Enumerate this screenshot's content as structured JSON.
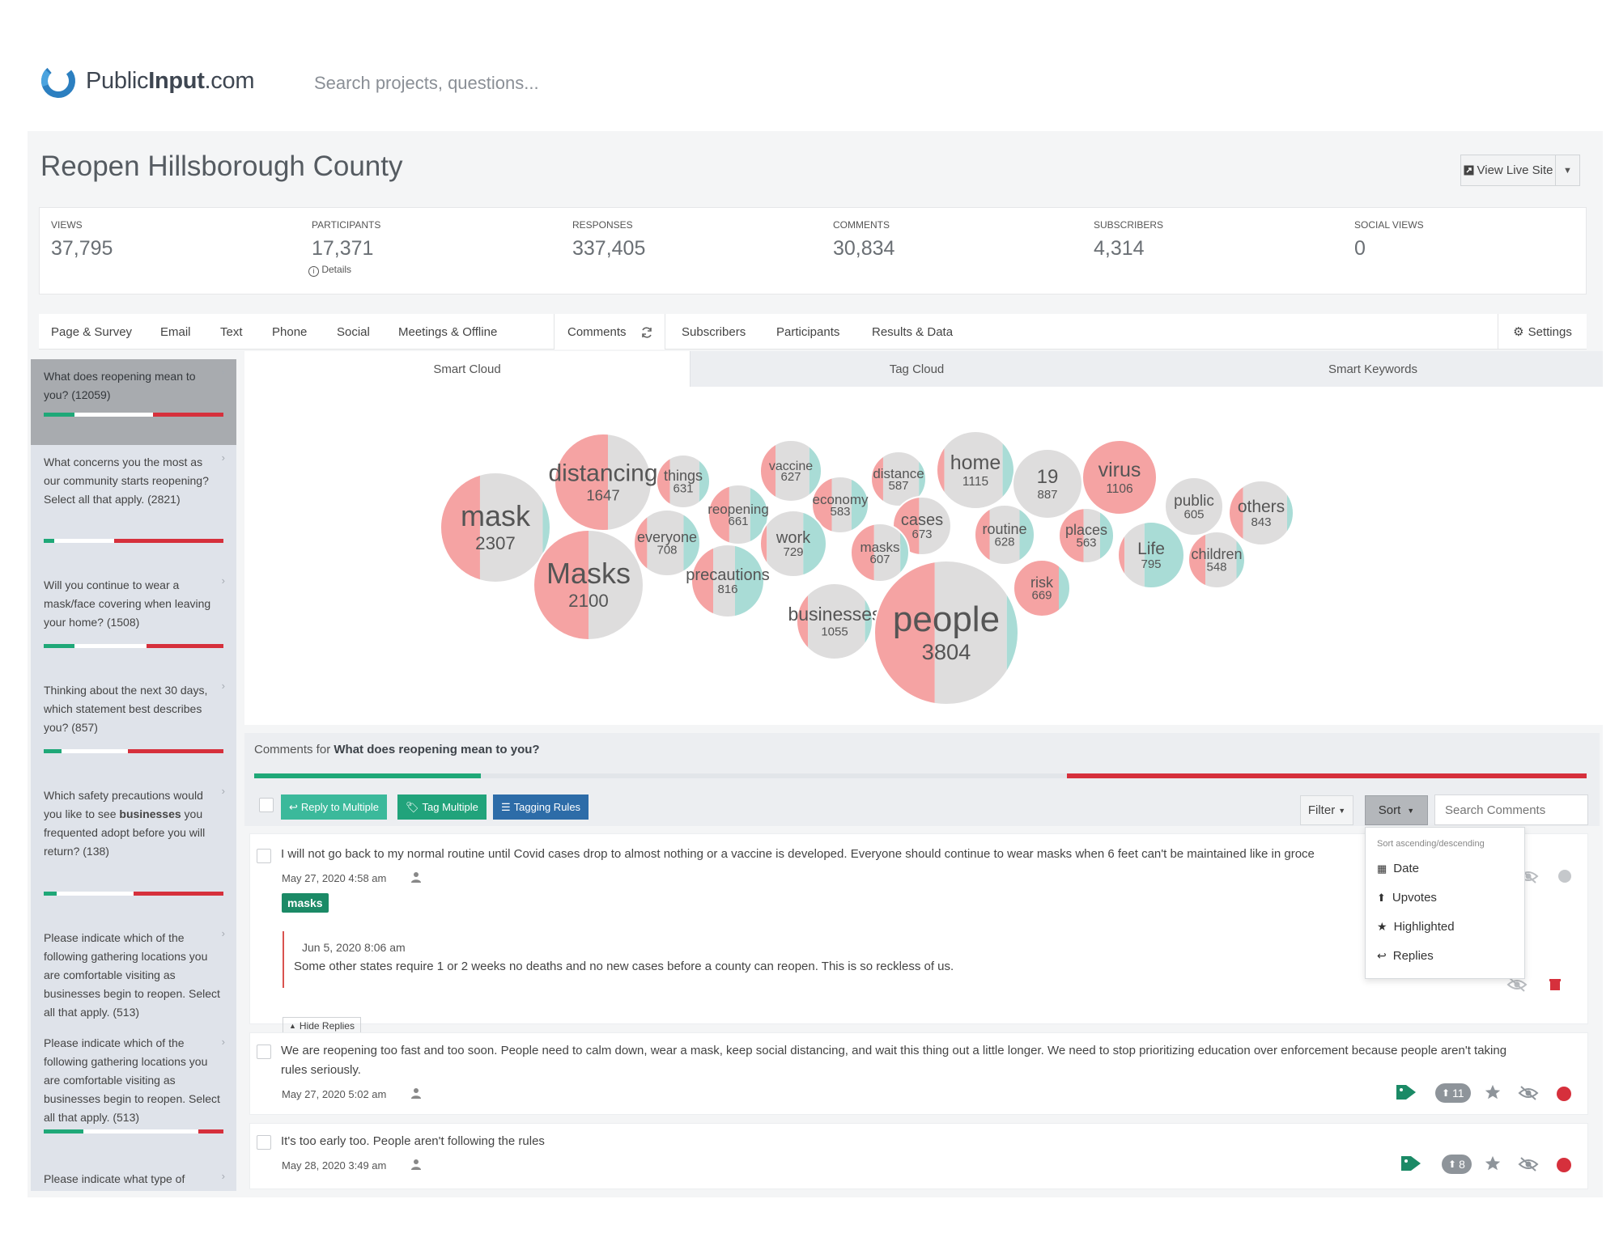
{
  "brand": {
    "name_plain": "Public",
    "name_bold": "Input",
    "name_suffix": ".com"
  },
  "header": {
    "search_placeholder": "Search projects, questions..."
  },
  "project": {
    "title": "Reopen Hillsborough County",
    "view_live_label": "View Live Site"
  },
  "stats": [
    {
      "label": "VIEWS",
      "value": "37,795"
    },
    {
      "label": "PARTICIPANTS",
      "value": "17,371"
    },
    {
      "label": "RESPONSES",
      "value": "337,405"
    },
    {
      "label": "COMMENTS",
      "value": "30,834"
    },
    {
      "label": "SUBSCRIBERS",
      "value": "4,314"
    },
    {
      "label": "SOCIAL VIEWS",
      "value": "0"
    }
  ],
  "details_label": "Details",
  "nav": {
    "tabs": [
      "Page & Survey",
      "Email",
      "Text",
      "Phone",
      "Social",
      "Meetings & Offline"
    ],
    "comments": "Comments",
    "tabs_right": [
      "Subscribers",
      "Participants",
      "Results & Data"
    ],
    "settings": "Settings"
  },
  "questions": [
    {
      "text": "What does reopening mean to you? (12059)",
      "active": true,
      "sentiment": [
        0.17,
        0.44,
        0.39
      ]
    },
    {
      "text": "What concerns you the most as our community starts reopening? Select all that apply. (2821)",
      "active": false,
      "sentiment": [
        0.06,
        0.33,
        0.61
      ]
    },
    {
      "text": "Will you continue to wear a mask/face covering when leaving your home? (1508)",
      "active": false,
      "sentiment": [
        0.17,
        0.4,
        0.43
      ]
    },
    {
      "text": "Thinking about the next 30 days, which statement best describes you? (857)",
      "active": false,
      "sentiment": [
        0.1,
        0.37,
        0.53
      ]
    },
    {
      "text_pre": "Which safety precautions would you like to see ",
      "text_bold": "businesses",
      "text_post": " you frequented adopt before you will return? (138)",
      "active": false,
      "sentiment": [
        0.07,
        0.43,
        0.5
      ]
    },
    {
      "text": "Please indicate which of the following gathering locations you are comfortable visiting as businesses begin to reopen. Select all that apply. (513)",
      "active": false,
      "sentiment": [
        0,
        0,
        0
      ]
    },
    {
      "text": "Please indicate which of the following gathering locations you are comfortable visiting as businesses begin to reopen. Select all that apply. (513)",
      "active": false,
      "sentiment": [
        0.22,
        0.64,
        0.14
      ]
    },
    {
      "text": "Please indicate what type of",
      "active": false,
      "sentiment": [
        0,
        0,
        0
      ]
    }
  ],
  "cloud_tabs": [
    "Smart Cloud",
    "Tag Cloud",
    "Smart Keywords"
  ],
  "cloud_words": [
    {
      "word": "mask",
      "count": "2307",
      "neg": 0.36,
      "neu": 0.57,
      "pos": 0.07
    },
    {
      "word": "distancing",
      "count": "1647",
      "neg": 0.55,
      "neu": 0.45,
      "pos": 0.0
    },
    {
      "word": "things",
      "count": "631",
      "neg": 0.25,
      "neu": 0.55,
      "pos": 0.2
    },
    {
      "word": "vaccine",
      "count": "627",
      "neg": 0.25,
      "neu": 0.55,
      "pos": 0.2
    },
    {
      "word": "distance",
      "count": "587",
      "neg": 0.22,
      "neu": 0.65,
      "pos": 0.13
    },
    {
      "word": "home",
      "count": "1115",
      "neg": 0.1,
      "neu": 0.75,
      "pos": 0.15
    },
    {
      "word": "19",
      "count": "887",
      "neg": 0.0,
      "neu": 1.0,
      "pos": 0.0
    },
    {
      "word": "virus",
      "count": "1106",
      "neg": 1.0,
      "neu": 0.0,
      "pos": 0.0
    },
    {
      "word": "public",
      "count": "605",
      "neg": 0.0,
      "neu": 1.0,
      "pos": 0.0
    },
    {
      "word": "others",
      "count": "843",
      "neg": 0.22,
      "neu": 0.68,
      "pos": 0.1
    },
    {
      "word": "reopening",
      "count": "661",
      "neg": 0.35,
      "neu": 0.35,
      "pos": 0.3
    },
    {
      "word": "economy",
      "count": "583",
      "neg": 0.35,
      "neu": 0.35,
      "pos": 0.3
    },
    {
      "word": "everyone",
      "count": "708",
      "neg": 0.2,
      "neu": 0.55,
      "pos": 0.25
    },
    {
      "word": "work",
      "count": "729",
      "neg": 0.1,
      "neu": 0.55,
      "pos": 0.35
    },
    {
      "word": "cases",
      "count": "673",
      "neg": 0.45,
      "neu": 0.55,
      "pos": 0.0
    },
    {
      "word": "routine",
      "count": "628",
      "neg": 0.25,
      "neu": 0.5,
      "pos": 0.25
    },
    {
      "word": "places",
      "count": "563",
      "neg": 0.45,
      "neu": 0.3,
      "pos": 0.25
    },
    {
      "word": "Life",
      "count": "795",
      "neg": 0.1,
      "neu": 0.3,
      "pos": 0.6
    },
    {
      "word": "children",
      "count": "548",
      "neg": 0.3,
      "neu": 0.55,
      "pos": 0.15
    },
    {
      "word": "masks",
      "count": "607",
      "neg": 0.4,
      "neu": 0.45,
      "pos": 0.15
    },
    {
      "word": "Masks",
      "count": "2100",
      "neg": 0.5,
      "neu": 0.5,
      "pos": 0.0
    },
    {
      "word": "precautions",
      "count": "816",
      "neg": 0.3,
      "neu": 0.3,
      "pos": 0.4
    },
    {
      "word": "businesses",
      "count": "1055",
      "neg": 0.15,
      "neu": 0.75,
      "pos": 0.1
    },
    {
      "word": "people",
      "count": "3804",
      "neg": 0.42,
      "neu": 0.5,
      "pos": 0.08
    },
    {
      "word": "risk",
      "count": "669",
      "neg": 0.8,
      "neu": 0.0,
      "pos": 0.2
    }
  ],
  "comments_panel": {
    "prefix": "Comments for",
    "question": "What does reopening mean to you?",
    "sentiment": [
      0.17,
      0.44,
      0.39
    ],
    "buttons": {
      "reply_multiple": "Reply to Multiple",
      "tag_multiple": "Tag Multiple",
      "tagging_rules": "Tagging Rules"
    },
    "filter": "Filter",
    "sort": "Sort",
    "search_placeholder": "Search Comments"
  },
  "sort_menu": {
    "header": "Sort ascending/descending",
    "items": [
      "Date",
      "Upvotes",
      "Highlighted",
      "Replies"
    ]
  },
  "comments": [
    {
      "text": "I will not go back to my normal routine until Covid cases drop to almost nothing or a vaccine is developed. Everyone should continue to wear masks when 6 feet can't be maintained like in groce",
      "date": "May 27, 2020 4:58 am",
      "tag": "masks",
      "reply": {
        "date": "Jun 5, 2020 8:06 am",
        "text": "Some other states require 1 or 2 weeks no deaths and no new cases before a county can reopen. This is so reckless of us."
      },
      "hide_replies": "Hide Replies"
    },
    {
      "text_line1": "We are reopening too fast and too soon. People need to calm down, wear a mask, keep social distancing, and wait this thing out a little longer. We need to stop prioritizing education over enforcement because people aren't taking",
      "text_line2": "rules seriously.",
      "date": "May 27, 2020 5:02 am",
      "upvotes": "11"
    },
    {
      "text": "It's too early too. People aren't following the rules",
      "date": "May 28, 2020 3:49 am",
      "upvotes": "8"
    }
  ],
  "colors": {
    "positive": "#1fa878",
    "negative": "#d6303c",
    "neutral": "#ffffff",
    "bubble_neg": "#f5a3a3",
    "bubble_neu": "#dedddd",
    "bubble_pos": "#a9dcd6"
  }
}
